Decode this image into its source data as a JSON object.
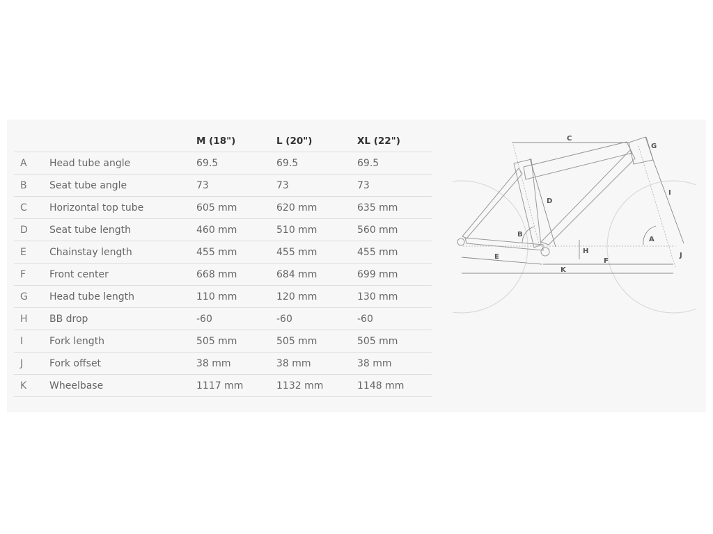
{
  "table": {
    "headers": [
      "",
      "",
      "M (18\")",
      "L (20\")",
      "XL (22\")"
    ],
    "rows": [
      [
        "A",
        "Head tube angle",
        "69.5",
        "69.5",
        "69.5"
      ],
      [
        "B",
        "Seat tube angle",
        "73",
        "73",
        "73"
      ],
      [
        "C",
        "Horizontal top tube",
        "605 mm",
        "620 mm",
        "635 mm"
      ],
      [
        "D",
        "Seat tube length",
        "460 mm",
        "510 mm",
        "560 mm"
      ],
      [
        "E",
        "Chainstay length",
        "455 mm",
        "455 mm",
        "455 mm"
      ],
      [
        "F",
        "Front center",
        "668 mm",
        "684 mm",
        "699 mm"
      ],
      [
        "G",
        "Head tube length",
        "110 mm",
        "120 mm",
        "130 mm"
      ],
      [
        "H",
        "BB drop",
        "-60",
        "-60",
        "-60"
      ],
      [
        "I",
        "Fork length",
        "505 mm",
        "505 mm",
        "505 mm"
      ],
      [
        "J",
        "Fork offset",
        "38 mm",
        "38 mm",
        "38 mm"
      ],
      [
        "K",
        "Wheelbase",
        "1117 mm",
        "1132 mm",
        "1148 mm"
      ]
    ]
  },
  "diagram": {
    "labels": [
      "A",
      "B",
      "C",
      "D",
      "E",
      "F",
      "G",
      "H",
      "I",
      "J",
      "K"
    ],
    "line_color": "#888888",
    "wheel_color": "#d8d8d8"
  }
}
